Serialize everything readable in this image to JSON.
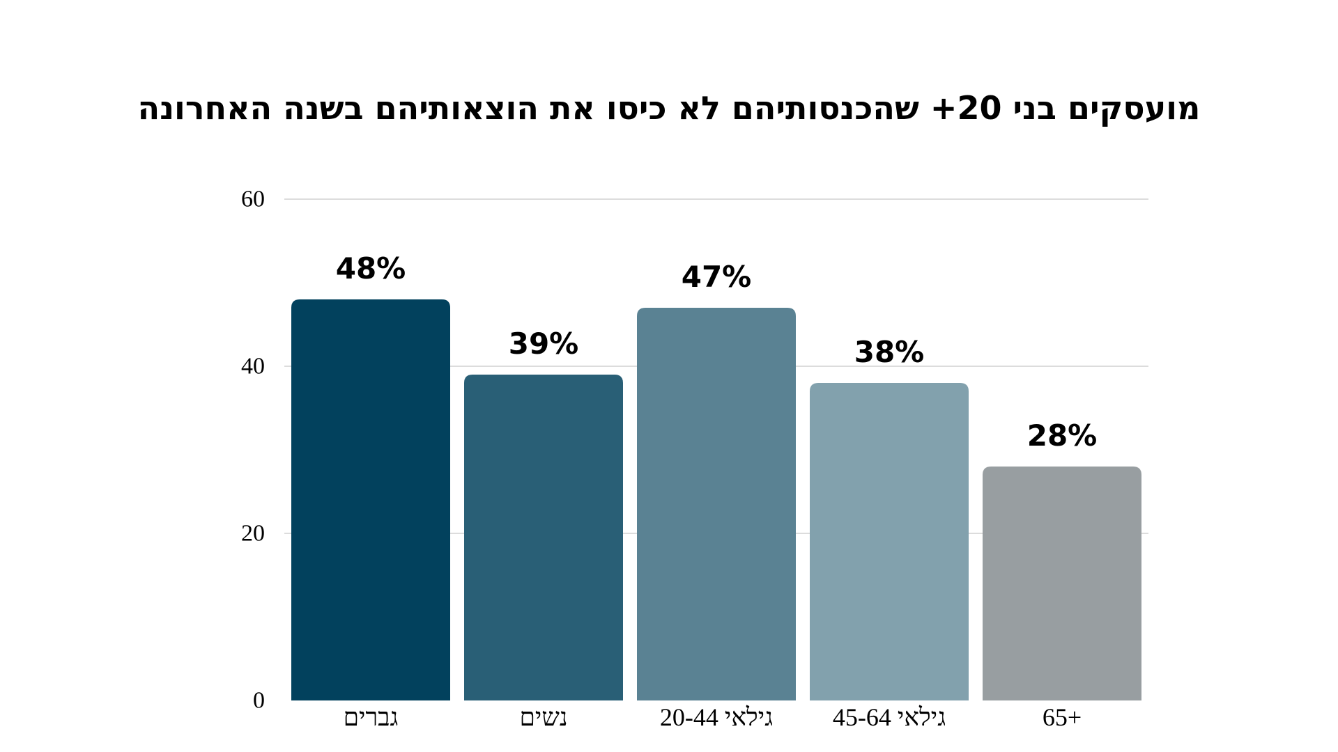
{
  "chart_data": {
    "type": "bar",
    "title": "מועסקים בני 20+ שהכנסותיהם לא כיסו את הוצאותיהם בשנה האחרונה",
    "categories": [
      "גברים",
      "נשים",
      "גילאי 20-44",
      "גילאי 45-64",
      "65+"
    ],
    "values": [
      48,
      39,
      47,
      38,
      28
    ],
    "data_labels": [
      "48%",
      "39%",
      "47%",
      "38%",
      "28%"
    ],
    "colors": [
      "#02415d",
      "#295f76",
      "#5a8293",
      "#82a1ad",
      "#989ea1"
    ],
    "yticks": [
      0,
      20,
      40,
      60
    ],
    "ylim": [
      0,
      60
    ],
    "grid": true,
    "xlabel": "",
    "ylabel": ""
  }
}
